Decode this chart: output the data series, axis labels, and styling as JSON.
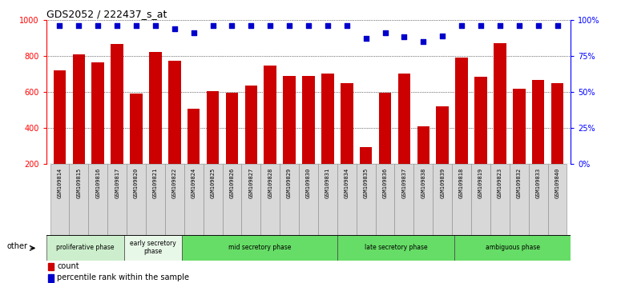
{
  "title": "GDS2052 / 222437_s_at",
  "samples": [
    "GSM109814",
    "GSM109815",
    "GSM109816",
    "GSM109817",
    "GSM109820",
    "GSM109821",
    "GSM109822",
    "GSM109824",
    "GSM109825",
    "GSM109826",
    "GSM109827",
    "GSM109828",
    "GSM109829",
    "GSM109830",
    "GSM109831",
    "GSM109834",
    "GSM109835",
    "GSM109836",
    "GSM109837",
    "GSM109838",
    "GSM109839",
    "GSM109818",
    "GSM109819",
    "GSM109823",
    "GSM109832",
    "GSM109833",
    "GSM109840"
  ],
  "counts": [
    720,
    810,
    765,
    865,
    590,
    820,
    775,
    505,
    605,
    595,
    635,
    745,
    690,
    690,
    700,
    650,
    295,
    595,
    700,
    410,
    520,
    790,
    685,
    870,
    620,
    665,
    650
  ],
  "percentiles": [
    96,
    96,
    96,
    96,
    96,
    96,
    94,
    91,
    96,
    96,
    96,
    96,
    96,
    96,
    96,
    96,
    87,
    91,
    88,
    85,
    89,
    96,
    96,
    96,
    96,
    96,
    96
  ],
  "phases": [
    {
      "name": "proliferative phase",
      "start": 0,
      "end": 4,
      "color": "#cceecc"
    },
    {
      "name": "early secretory\nphase",
      "start": 4,
      "end": 7,
      "color": "#e8f8e8"
    },
    {
      "name": "mid secretory phase",
      "start": 7,
      "end": 15,
      "color": "#66dd66"
    },
    {
      "name": "late secretory phase",
      "start": 15,
      "end": 21,
      "color": "#66dd66"
    },
    {
      "name": "ambiguous phase",
      "start": 21,
      "end": 27,
      "color": "#66dd66"
    }
  ],
  "bar_color": "#cc0000",
  "dot_color": "#0000cc",
  "ylim_left": [
    200,
    1000
  ],
  "ylim_right": [
    0,
    100
  ],
  "yticks_left": [
    200,
    400,
    600,
    800,
    1000
  ],
  "yticks_right": [
    0,
    25,
    50,
    75,
    100
  ],
  "cell_bg": "#d8d8d8",
  "fig_bg": "#ffffff"
}
